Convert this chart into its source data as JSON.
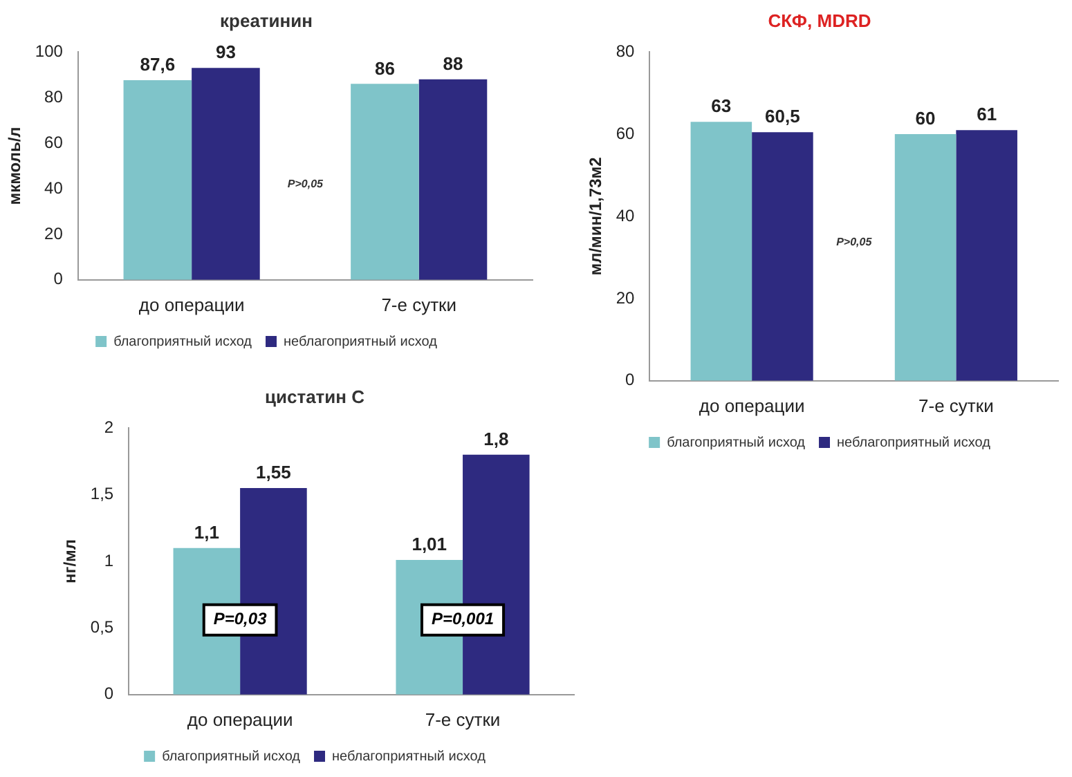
{
  "chart_data": [
    {
      "type": "bar",
      "title": "креатинин",
      "ylabel": "мкмоль/л",
      "categories": [
        "до операции",
        "7-е сутки"
      ],
      "series": [
        {
          "name": "благоприятный исход",
          "color": "#7fc4c9",
          "values": [
            87.6,
            86
          ],
          "value_labels": [
            "87,6",
            "86"
          ]
        },
        {
          "name": "неблагоприятный исход",
          "color": "#2e2a80",
          "values": [
            93,
            88
          ],
          "value_labels": [
            "93",
            "88"
          ]
        }
      ],
      "ylim": [
        0,
        100
      ],
      "yticks": [
        0,
        20,
        40,
        60,
        80,
        100
      ],
      "grid": false,
      "legend": "bottom",
      "annotations": [
        "P>0,05"
      ]
    },
    {
      "type": "bar",
      "title": "СКФ, MDRD",
      "ylabel": "мл/мин/1,73м2",
      "categories": [
        "до операции",
        "7-е сутки"
      ],
      "series": [
        {
          "name": "благоприятный исход",
          "color": "#7fc4c9",
          "values": [
            63,
            60
          ],
          "value_labels": [
            "63",
            "60"
          ]
        },
        {
          "name": "неблагоприятный исход",
          "color": "#2e2a80",
          "values": [
            60.5,
            61
          ],
          "value_labels": [
            "60,5",
            "61"
          ]
        }
      ],
      "ylim": [
        0,
        80
      ],
      "yticks": [
        0,
        20,
        40,
        60,
        80
      ],
      "grid": false,
      "legend": "bottom",
      "annotations": [
        "P>0,05"
      ]
    },
    {
      "type": "bar",
      "title": "цистатин С",
      "ylabel": "нг/мл",
      "categories": [
        "до операции",
        "7-е сутки"
      ],
      "series": [
        {
          "name": "благоприятный исход",
          "color": "#7fc4c9",
          "values": [
            1.1,
            1.01
          ],
          "value_labels": [
            "1,1",
            "1,01"
          ]
        },
        {
          "name": "неблагоприятный исход",
          "color": "#2e2a80",
          "values": [
            1.55,
            1.8
          ],
          "value_labels": [
            "1,55",
            "1,8"
          ]
        }
      ],
      "ylim": [
        0,
        2
      ],
      "yticks": [
        0,
        {
          "value": 0.5,
          "label": "0,5"
        },
        1,
        {
          "value": 1.5,
          "label": "1,5"
        },
        2
      ],
      "grid": false,
      "legend": "bottom",
      "annotations": [
        "P=0,03",
        "P=0,001"
      ]
    }
  ]
}
